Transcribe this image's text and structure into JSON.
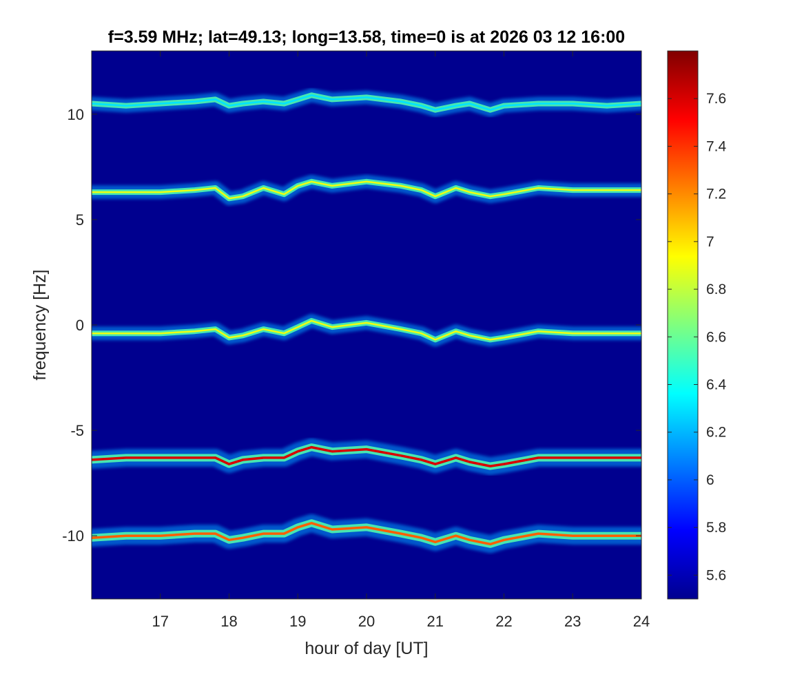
{
  "chart_data": {
    "type": "heatmap",
    "title": "f=3.59 MHz;  lat=49.13; long=13.58, time=0 is at 2026 03 12 16:00",
    "xlabel": "hour of day [UT]",
    "ylabel": "frequency [Hz]",
    "xlim": [
      16,
      24
    ],
    "ylim": [
      -13,
      13
    ],
    "x_ticks": [
      "17",
      "18",
      "19",
      "20",
      "21",
      "22",
      "23",
      "24"
    ],
    "x_tick_values": [
      17,
      18,
      19,
      20,
      21,
      22,
      23,
      24
    ],
    "y_ticks": [
      "10",
      "5",
      "0",
      "-5",
      "-10"
    ],
    "y_tick_values": [
      10,
      5,
      0,
      -5,
      -10
    ],
    "grid": false,
    "colormap": "jet",
    "background_color": "#00008f",
    "colorbar": {
      "range": [
        5.5,
        7.8
      ],
      "ticks": [
        "5.6",
        "5.8",
        "6",
        "6.2",
        "6.4",
        "6.6",
        "6.8",
        "7",
        "7.2",
        "7.4",
        "7.6"
      ],
      "tick_values": [
        5.6,
        5.8,
        6.0,
        6.2,
        6.4,
        6.6,
        6.8,
        7.0,
        7.2,
        7.4,
        7.6
      ]
    },
    "traces": [
      {
        "intensity": 6.3,
        "x": [
          16.0,
          16.5,
          17.0,
          17.5,
          17.8,
          18.0,
          18.2,
          18.5,
          18.8,
          19.0,
          19.2,
          19.5,
          20.0,
          20.5,
          20.8,
          21.0,
          21.3,
          21.5,
          21.8,
          22.0,
          22.5,
          23.0,
          23.5,
          24.0
        ],
        "y": [
          10.5,
          10.4,
          10.5,
          10.6,
          10.7,
          10.4,
          10.5,
          10.6,
          10.5,
          10.7,
          10.9,
          10.7,
          10.8,
          10.6,
          10.4,
          10.2,
          10.4,
          10.5,
          10.2,
          10.4,
          10.5,
          10.5,
          10.4,
          10.5
        ]
      },
      {
        "intensity": 6.9,
        "x": [
          16.0,
          16.5,
          17.0,
          17.5,
          17.8,
          18.0,
          18.2,
          18.5,
          18.8,
          19.0,
          19.2,
          19.5,
          20.0,
          20.5,
          20.8,
          21.0,
          21.3,
          21.5,
          21.8,
          22.0,
          22.5,
          23.0,
          23.5,
          24.0
        ],
        "y": [
          6.3,
          6.3,
          6.3,
          6.4,
          6.5,
          6.0,
          6.1,
          6.5,
          6.2,
          6.6,
          6.8,
          6.6,
          6.8,
          6.6,
          6.4,
          6.1,
          6.5,
          6.3,
          6.1,
          6.2,
          6.5,
          6.4,
          6.4,
          6.4
        ]
      },
      {
        "intensity": 6.9,
        "x": [
          16.0,
          16.5,
          17.0,
          17.5,
          17.8,
          18.0,
          18.2,
          18.5,
          18.8,
          19.0,
          19.2,
          19.5,
          20.0,
          20.5,
          20.8,
          21.0,
          21.3,
          21.5,
          21.8,
          22.0,
          22.5,
          23.0,
          23.5,
          24.0
        ],
        "y": [
          -0.4,
          -0.4,
          -0.4,
          -0.3,
          -0.2,
          -0.6,
          -0.5,
          -0.2,
          -0.4,
          -0.1,
          0.2,
          -0.1,
          0.1,
          -0.2,
          -0.4,
          -0.7,
          -0.3,
          -0.5,
          -0.7,
          -0.6,
          -0.3,
          -0.4,
          -0.4,
          -0.4
        ]
      },
      {
        "intensity": 7.6,
        "x": [
          16.0,
          16.5,
          17.0,
          17.5,
          17.8,
          18.0,
          18.2,
          18.5,
          18.8,
          19.0,
          19.2,
          19.5,
          20.0,
          20.5,
          20.8,
          21.0,
          21.3,
          21.5,
          21.8,
          22.0,
          22.5,
          23.0,
          23.5,
          24.0
        ],
        "y": [
          -6.4,
          -6.3,
          -6.3,
          -6.3,
          -6.3,
          -6.6,
          -6.4,
          -6.3,
          -6.3,
          -6.0,
          -5.8,
          -6.0,
          -5.9,
          -6.2,
          -6.4,
          -6.6,
          -6.3,
          -6.5,
          -6.7,
          -6.6,
          -6.3,
          -6.3,
          -6.3,
          -6.3
        ]
      },
      {
        "intensity": 7.3,
        "x": [
          16.0,
          16.5,
          17.0,
          17.5,
          17.8,
          18.0,
          18.2,
          18.5,
          18.8,
          19.0,
          19.2,
          19.5,
          20.0,
          20.5,
          20.8,
          21.0,
          21.3,
          21.5,
          21.8,
          22.0,
          22.5,
          23.0,
          23.5,
          24.0
        ],
        "y": [
          -10.1,
          -10.0,
          -10.0,
          -9.9,
          -9.9,
          -10.2,
          -10.1,
          -9.9,
          -9.9,
          -9.6,
          -9.4,
          -9.7,
          -9.6,
          -9.9,
          -10.1,
          -10.3,
          -10.0,
          -10.2,
          -10.4,
          -10.2,
          -9.9,
          -10.0,
          -10.0,
          -10.0
        ]
      }
    ]
  }
}
